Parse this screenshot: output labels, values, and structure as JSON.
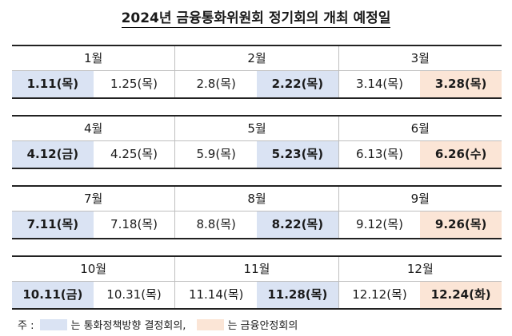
{
  "title": "2024년 금융통화위원회 정기회의 개최 예정일",
  "rows": [
    [
      {
        "month": "1월",
        "dates": [
          {
            "label": "1.11(목)",
            "type": "mp"
          },
          {
            "label": "1.25(목)",
            "type": ""
          }
        ]
      },
      {
        "month": "2월",
        "dates": [
          {
            "label": "2.8(목)",
            "type": ""
          },
          {
            "label": "2.22(목)",
            "type": "mp"
          }
        ]
      },
      {
        "month": "3월",
        "dates": [
          {
            "label": "3.14(목)",
            "type": ""
          },
          {
            "label": "3.28(목)",
            "type": "fs"
          }
        ]
      }
    ],
    [
      {
        "month": "4월",
        "dates": [
          {
            "label": "4.12(금)",
            "type": "mp"
          },
          {
            "label": "4.25(목)",
            "type": ""
          }
        ]
      },
      {
        "month": "5월",
        "dates": [
          {
            "label": "5.9(목)",
            "type": ""
          },
          {
            "label": "5.23(목)",
            "type": "mp"
          }
        ]
      },
      {
        "month": "6월",
        "dates": [
          {
            "label": "6.13(목)",
            "type": ""
          },
          {
            "label": "6.26(수)",
            "type": "fs"
          }
        ]
      }
    ],
    [
      {
        "month": "7월",
        "dates": [
          {
            "label": "7.11(목)",
            "type": "mp"
          },
          {
            "label": "7.18(목)",
            "type": ""
          }
        ]
      },
      {
        "month": "8월",
        "dates": [
          {
            "label": "8.8(목)",
            "type": ""
          },
          {
            "label": "8.22(목)",
            "type": "mp"
          }
        ]
      },
      {
        "month": "9월",
        "dates": [
          {
            "label": "9.12(목)",
            "type": ""
          },
          {
            "label": "9.26(목)",
            "type": "fs"
          }
        ]
      }
    ],
    [
      {
        "month": "10월",
        "dates": [
          {
            "label": "10.11(금)",
            "type": "mp"
          },
          {
            "label": "10.31(목)",
            "type": ""
          }
        ]
      },
      {
        "month": "11월",
        "dates": [
          {
            "label": "11.14(목)",
            "type": ""
          },
          {
            "label": "11.28(목)",
            "type": "mp"
          }
        ]
      },
      {
        "month": "12월",
        "dates": [
          {
            "label": "12.12(목)",
            "type": ""
          },
          {
            "label": "12.24(화)",
            "type": "fs"
          }
        ]
      }
    ]
  ],
  "note": {
    "prefix": "주 :",
    "mp_text": "는 통화정책방향 결정회의,",
    "fs_text": "는 금융안정회의"
  },
  "colors": {
    "monetary_policy": "#dae3f3",
    "financial_stability": "#fbe5d6"
  }
}
